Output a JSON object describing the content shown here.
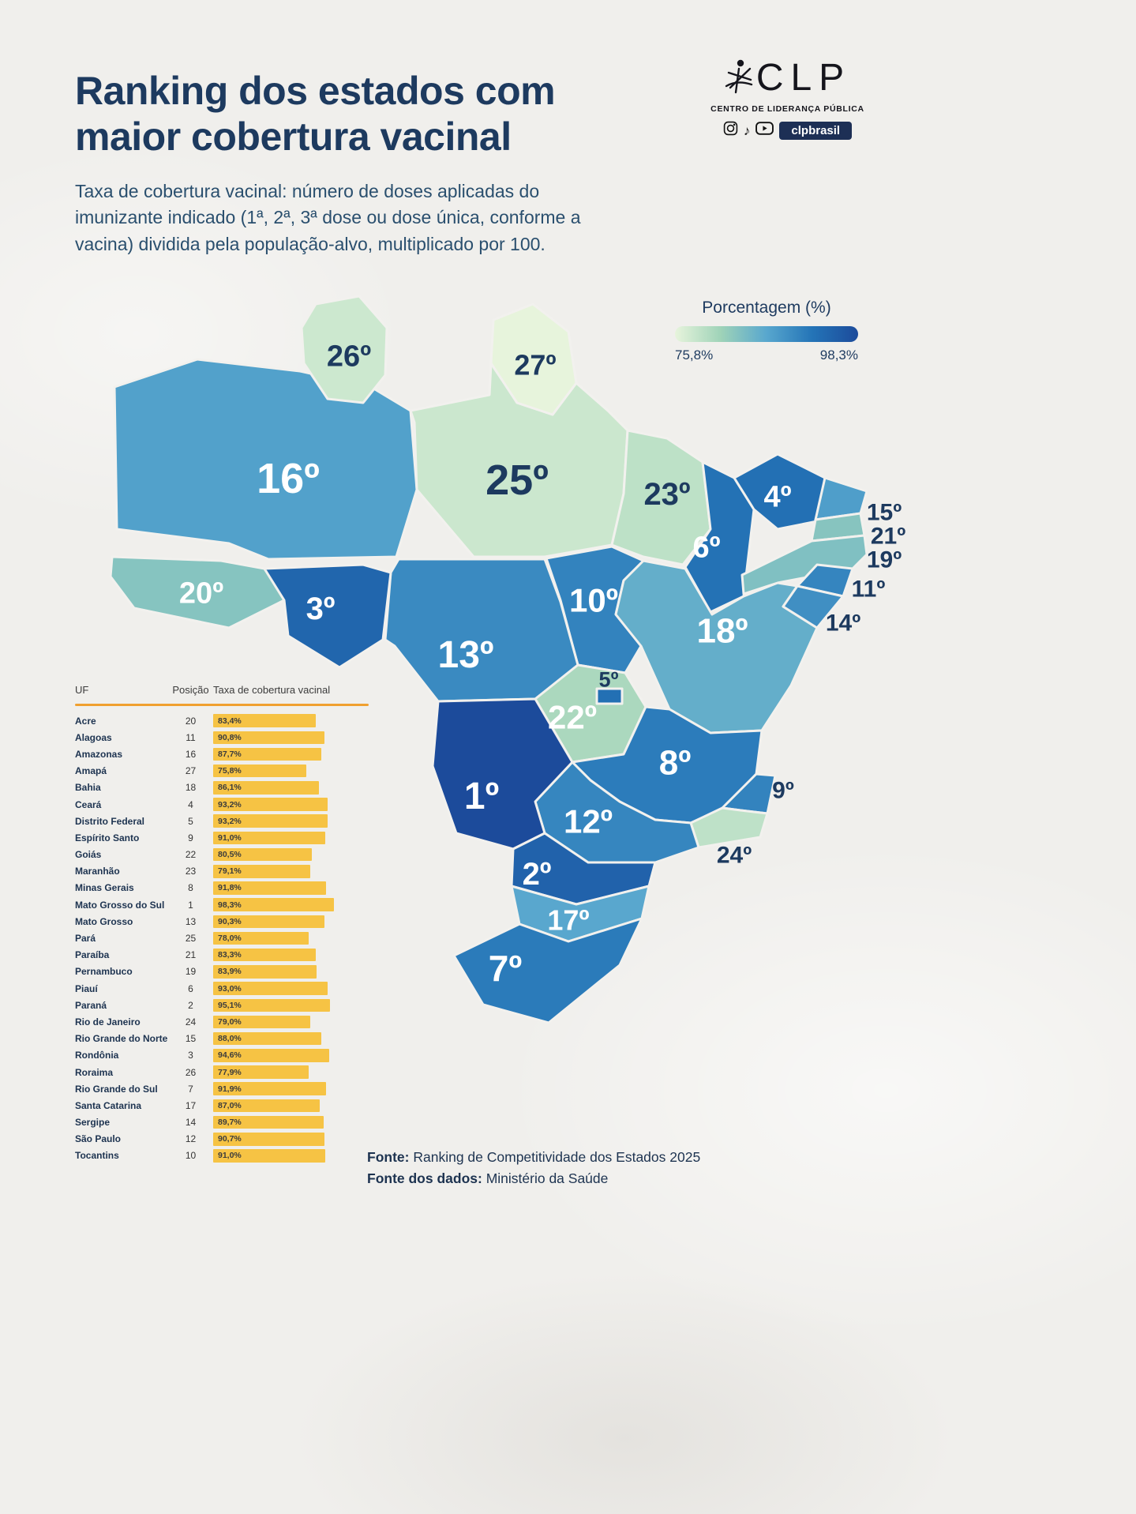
{
  "header": {
    "title_line1": "Ranking dos estados com",
    "title_line2": "maior cobertura vacinal",
    "subtitle": "Taxa de cobertura vacinal: número de doses aplicadas do imunizante indicado (1ª, 2ª, 3ª dose ou dose única, conforme a vacina) dividida pela população-alvo, multiplicado por 100.",
    "logo": {
      "name": "CLP",
      "tagline": "CENTRO DE LIDERANÇA PÚBLICA",
      "social_handle": "clpbrasil",
      "social_icons": [
        "instagram-icon",
        "tiktok-icon",
        "youtube-icon"
      ]
    }
  },
  "legend": {
    "title": "Porcentagem (%)",
    "min_label": "75,8%",
    "max_label": "98,3%",
    "min_value": 75.8,
    "max_value": 98.3,
    "colors": [
      "#e7f4dc",
      "#9fd3b8",
      "#58a7ce",
      "#2474b7",
      "#1c4b9b"
    ]
  },
  "chart_data": {
    "type": "bar",
    "title": "Ranking dos estados com maior cobertura vacinal",
    "columns": [
      "UF",
      "Posição",
      "Taxa de cobertura vacinal"
    ],
    "bar_color": "#f6c344",
    "rows": [
      {
        "uf": "Acre",
        "abbr": "AC",
        "position": 20,
        "rate": 83.4,
        "rate_label": "83,4%"
      },
      {
        "uf": "Alagoas",
        "abbr": "AL",
        "position": 11,
        "rate": 90.8,
        "rate_label": "90,8%"
      },
      {
        "uf": "Amazonas",
        "abbr": "AM",
        "position": 16,
        "rate": 87.7,
        "rate_label": "87,7%"
      },
      {
        "uf": "Amapá",
        "abbr": "AP",
        "position": 27,
        "rate": 75.8,
        "rate_label": "75,8%"
      },
      {
        "uf": "Bahia",
        "abbr": "BA",
        "position": 18,
        "rate": 86.1,
        "rate_label": "86,1%"
      },
      {
        "uf": "Ceará",
        "abbr": "CE",
        "position": 4,
        "rate": 93.2,
        "rate_label": "93,2%"
      },
      {
        "uf": "Distrito Federal",
        "abbr": "DF",
        "position": 5,
        "rate": 93.2,
        "rate_label": "93,2%"
      },
      {
        "uf": "Espírito Santo",
        "abbr": "ES",
        "position": 9,
        "rate": 91.0,
        "rate_label": "91,0%"
      },
      {
        "uf": "Goiás",
        "abbr": "GO",
        "position": 22,
        "rate": 80.5,
        "rate_label": "80,5%"
      },
      {
        "uf": "Maranhão",
        "abbr": "MA",
        "position": 23,
        "rate": 79.1,
        "rate_label": "79,1%"
      },
      {
        "uf": "Minas Gerais",
        "abbr": "MG",
        "position": 8,
        "rate": 91.8,
        "rate_label": "91,8%"
      },
      {
        "uf": "Mato Grosso do Sul",
        "abbr": "MS",
        "position": 1,
        "rate": 98.3,
        "rate_label": "98,3%"
      },
      {
        "uf": "Mato Grosso",
        "abbr": "MT",
        "position": 13,
        "rate": 90.3,
        "rate_label": "90,3%"
      },
      {
        "uf": "Pará",
        "abbr": "PA",
        "position": 25,
        "rate": 78.0,
        "rate_label": "78,0%"
      },
      {
        "uf": "Paraíba",
        "abbr": "PB",
        "position": 21,
        "rate": 83.3,
        "rate_label": "83,3%"
      },
      {
        "uf": "Pernambuco",
        "abbr": "PE",
        "position": 19,
        "rate": 83.9,
        "rate_label": "83,9%"
      },
      {
        "uf": "Piauí",
        "abbr": "PI",
        "position": 6,
        "rate": 93.0,
        "rate_label": "93,0%"
      },
      {
        "uf": "Paraná",
        "abbr": "PR",
        "position": 2,
        "rate": 95.1,
        "rate_label": "95,1%"
      },
      {
        "uf": "Rio de Janeiro",
        "abbr": "RJ",
        "position": 24,
        "rate": 79.0,
        "rate_label": "79,0%"
      },
      {
        "uf": "Rio Grande do Norte",
        "abbr": "RN",
        "position": 15,
        "rate": 88.0,
        "rate_label": "88,0%"
      },
      {
        "uf": "Rondônia",
        "abbr": "RO",
        "position": 3,
        "rate": 94.6,
        "rate_label": "94,6%"
      },
      {
        "uf": "Roraima",
        "abbr": "RR",
        "position": 26,
        "rate": 77.9,
        "rate_label": "77,9%"
      },
      {
        "uf": "Rio Grande do Sul",
        "abbr": "RS",
        "position": 7,
        "rate": 91.9,
        "rate_label": "91,9%"
      },
      {
        "uf": "Santa Catarina",
        "abbr": "SC",
        "position": 17,
        "rate": 87.0,
        "rate_label": "87,0%"
      },
      {
        "uf": "Sergipe",
        "abbr": "SE",
        "position": 14,
        "rate": 89.7,
        "rate_label": "89,7%"
      },
      {
        "uf": "São Paulo",
        "abbr": "SP",
        "position": 12,
        "rate": 90.7,
        "rate_label": "90,7%"
      },
      {
        "uf": "Tocantins",
        "abbr": "TO",
        "position": 10,
        "rate": 91.0,
        "rate_label": "91,0%"
      }
    ]
  },
  "map": {
    "labels": [
      {
        "abbr": "AC",
        "label": "20º"
      },
      {
        "abbr": "AL",
        "label": "11º"
      },
      {
        "abbr": "AM",
        "label": "16º"
      },
      {
        "abbr": "AP",
        "label": "27º"
      },
      {
        "abbr": "BA",
        "label": "18º"
      },
      {
        "abbr": "CE",
        "label": "4º"
      },
      {
        "abbr": "DF",
        "label": "5º"
      },
      {
        "abbr": "ES",
        "label": "9º"
      },
      {
        "abbr": "GO",
        "label": "22º"
      },
      {
        "abbr": "MA",
        "label": "23º"
      },
      {
        "abbr": "MG",
        "label": "8º"
      },
      {
        "abbr": "MS",
        "label": "1º"
      },
      {
        "abbr": "MT",
        "label": "13º"
      },
      {
        "abbr": "PA",
        "label": "25º"
      },
      {
        "abbr": "PB",
        "label": "21º"
      },
      {
        "abbr": "PE",
        "label": "19º"
      },
      {
        "abbr": "PI",
        "label": "6º"
      },
      {
        "abbr": "PR",
        "label": "2º"
      },
      {
        "abbr": "RJ",
        "label": "24º"
      },
      {
        "abbr": "RN",
        "label": "15º"
      },
      {
        "abbr": "RO",
        "label": "3º"
      },
      {
        "abbr": "RR",
        "label": "26º"
      },
      {
        "abbr": "RS",
        "label": "7º"
      },
      {
        "abbr": "SC",
        "label": "17º"
      },
      {
        "abbr": "SE",
        "label": "14º"
      },
      {
        "abbr": "SP",
        "label": "12º"
      },
      {
        "abbr": "TO",
        "label": "10º"
      }
    ]
  },
  "footer": {
    "source_label": "Fonte:",
    "source": "Ranking de Competitividade dos Estados 2025",
    "data_source_label": "Fonte dos dados:",
    "data_source": "Ministério da Saúde"
  }
}
